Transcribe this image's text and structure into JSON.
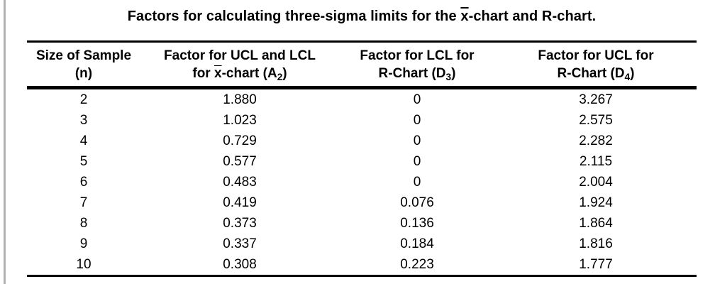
{
  "title": {
    "pre": "Factors for calculating three-sigma limits for the ",
    "xbar": "x",
    "post": "-chart and R-chart."
  },
  "table": {
    "headers": {
      "col1": {
        "line1": "Size of Sample",
        "line2": "(n)"
      },
      "col2": {
        "line1": "Factor for UCL and LCL",
        "line2_pre": "for ",
        "line2_xbar": "x",
        "line2_mid": "-chart (A",
        "line2_sub": "2",
        "line2_end": ")"
      },
      "col3": {
        "line1": "Factor for LCL for",
        "line2_pre": "R-Chart (D",
        "line2_sub": "3",
        "line2_end": ")"
      },
      "col4": {
        "line1": "Factor for UCL for",
        "line2_pre": "R-Chart (D",
        "line2_sub": "4",
        "line2_end": ")"
      }
    },
    "rows": [
      {
        "n": "2",
        "a2": "1.880",
        "d3": "0",
        "d4": "3.267"
      },
      {
        "n": "3",
        "a2": "1.023",
        "d3": "0",
        "d4": "2.575"
      },
      {
        "n": "4",
        "a2": "0.729",
        "d3": "0",
        "d4": "2.282"
      },
      {
        "n": "5",
        "a2": "0.577",
        "d3": "0",
        "d4": "2.115"
      },
      {
        "n": "6",
        "a2": "0.483",
        "d3": "0",
        "d4": "2.004"
      },
      {
        "n": "7",
        "a2": "0.419",
        "d3": "0.076",
        "d4": "1.924"
      },
      {
        "n": "8",
        "a2": "0.373",
        "d3": "0.136",
        "d4": "1.864"
      },
      {
        "n": "9",
        "a2": "0.337",
        "d3": "0.184",
        "d4": "1.816"
      },
      {
        "n": "10",
        "a2": "0.308",
        "d3": "0.223",
        "d4": "1.777"
      }
    ]
  },
  "colors": {
    "text": "#000000",
    "rule": "#000000",
    "left_border": "#b3b3b3",
    "background": "#ffffff"
  }
}
